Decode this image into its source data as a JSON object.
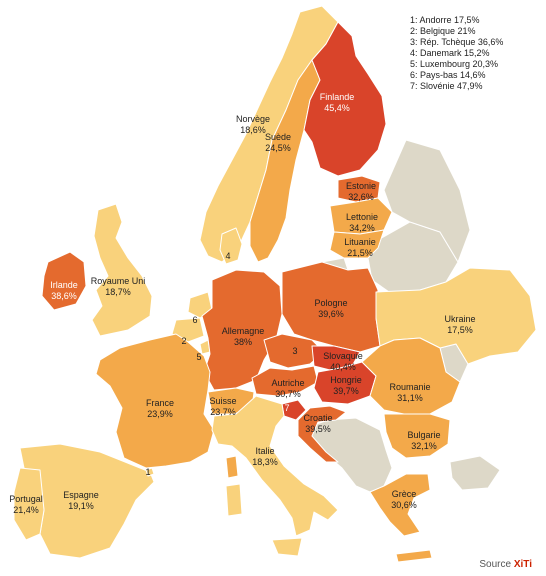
{
  "legend": [
    "1: Andorre 17,5%",
    "2: Belgique 21%",
    "3: Rép. Tchèque 36,6%",
    "4: Danemark 15,2%",
    "5: Luxembourg 20,3%",
    "6: Pays-bas 14,6%",
    "7: Slovénie 47,9%"
  ],
  "source": {
    "label": "Source",
    "brand": "XiTi"
  },
  "colors": {
    "sea": "#ffffff",
    "no_data": "#ddd8c8",
    "scale_light": "#f9d27c",
    "scale_mid": "#f3a94a",
    "scale_dark": "#e46a2e",
    "scale_darkest": "#d9442a",
    "border": "#ffffff"
  },
  "countries": {
    "finlande": {
      "name": "Finlande",
      "value": "45,4%"
    },
    "norvege": {
      "name": "Norvège",
      "value": "18,6%"
    },
    "suede": {
      "name": "Suède",
      "value": "24,5%"
    },
    "estonie": {
      "name": "Estonie",
      "value": "32,6%"
    },
    "lettonie": {
      "name": "Lettonie",
      "value": "34,2%"
    },
    "lituanie": {
      "name": "Lituanie",
      "value": "21,5%"
    },
    "irlande": {
      "name": "Irlande",
      "value": "38,6%"
    },
    "royaume_uni": {
      "name": "Royaume Uni",
      "value": "18,7%"
    },
    "pologne": {
      "name": "Pologne",
      "value": "39,6%"
    },
    "ukraine": {
      "name": "Ukraine",
      "value": "17,5%"
    },
    "allemagne": {
      "name": "Allemagne",
      "value": "38%"
    },
    "slovaquie": {
      "name": "Slovaquie",
      "value": "40,4%"
    },
    "hongrie": {
      "name": "Hongrie",
      "value": "39,7%"
    },
    "autriche": {
      "name": "Autriche",
      "value": "30,7%"
    },
    "france": {
      "name": "France",
      "value": "23,9%"
    },
    "suisse": {
      "name": "Suisse",
      "value": "23,7%"
    },
    "roumanie": {
      "name": "Roumanie",
      "value": "31,1%"
    },
    "croatie": {
      "name": "Croatie",
      "value": "39,5%"
    },
    "bulgarie": {
      "name": "Bulgarie",
      "value": "32,1%"
    },
    "italie": {
      "name": "Italie",
      "value": "18,3%"
    },
    "grece": {
      "name": "Grèce",
      "value": "30,6%"
    },
    "espagne": {
      "name": "Espagne",
      "value": "19,1%"
    },
    "portugal": {
      "name": "Portugal",
      "value": "21,4%"
    }
  },
  "markers": {
    "andorre": "1",
    "belgique": "2",
    "rep_tcheque": "3",
    "danemark": "4",
    "luxembourg": "5",
    "pays_bas": "6",
    "slovenie": "7"
  }
}
